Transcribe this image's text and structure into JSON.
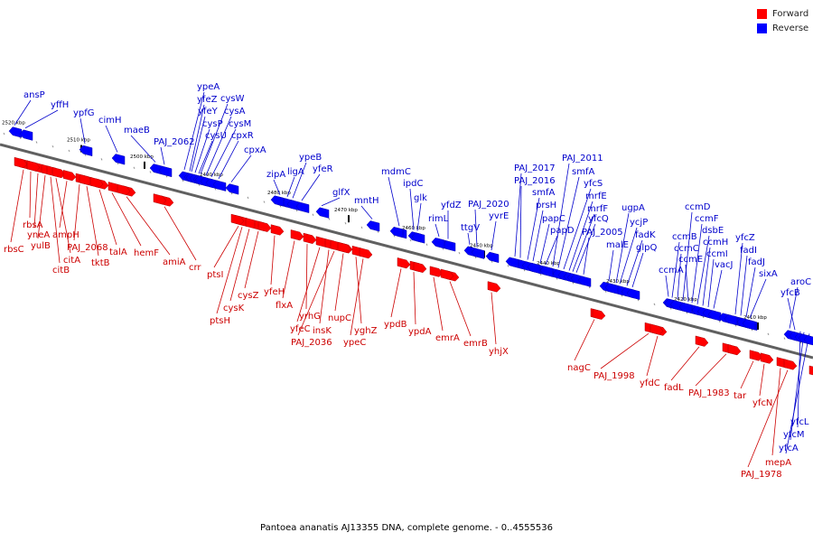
{
  "legend": {
    "forward_label": "Forward",
    "reverse_label": "Reverse",
    "forward_color": "#ff0000",
    "reverse_color": "#0000ff"
  },
  "colors": {
    "forward_label": "#cc0000",
    "reverse_label": "#0000cc",
    "backbone": "#606060",
    "tick_major": "#000000",
    "tick_minor": "#909090"
  },
  "footer": "Pantoea ananatis AJ13355 DNA, complete genome. - 0..4555536",
  "scale_labels": [
    "2520 kbp",
    "2510 kbp",
    "2500 kbp",
    "2490 kbp",
    "2480 kbp",
    "2470 kbp",
    "2460 kbp",
    "2450 kbp",
    "2440 kbp",
    "2430 kbp",
    "2420 kbp",
    "2410 kbp"
  ],
  "forward_genes": [
    "rbsC",
    "rbsA",
    "yneA",
    "yulB",
    "citB",
    "citA",
    "ampH",
    "PAJ_2068",
    "tktB",
    "talA",
    "hemF",
    "amiA",
    "crr",
    "ptsI",
    "ptsH",
    "cysK",
    "cysZ",
    "yfeH",
    "flxA",
    "yrhG",
    "yfeC",
    "insK",
    "PAJ_2036",
    "nupC",
    "yghZ",
    "ypeC",
    "ypdB",
    "ypdA",
    "emrA",
    "emrB",
    "yhjX",
    "nagC",
    "PAJ_1998",
    "yfdC",
    "fadL",
    "PAJ_1983",
    "tar",
    "yfcN",
    "mepA",
    "PAJ_1978"
  ],
  "reverse_genes": [
    "ansP",
    "yffH",
    "ypfG",
    "cimH",
    "maeB",
    "PAJ_2062",
    "ypeA",
    "yfeZ",
    "yfeY",
    "cysP",
    "cysU",
    "cysW",
    "cysA",
    "cysM",
    "cpxR",
    "cpxA",
    "zipA",
    "ligA",
    "ypeB",
    "yfeR",
    "glfX",
    "mntH",
    "mdmC",
    "ipdC",
    "glk",
    "rimL",
    "yfdZ",
    "ttgV",
    "PAJ_2020",
    "yvrE",
    "PAJ_2017",
    "PAJ_2016",
    "smfA",
    "prsH",
    "papC",
    "papD",
    "PAJ_2011",
    "smfA",
    "yfcS",
    "mrfE",
    "mrfF",
    "yfcQ",
    "PAJ_2005",
    "malE",
    "ugpA",
    "ycjP",
    "fadK",
    "glpQ",
    "ccmA",
    "ccmB",
    "ccmC",
    "ccmD",
    "ccmE",
    "ccmF",
    "dsbE",
    "ccmH",
    "ccmI",
    "vacJ",
    "yfcZ",
    "fadI",
    "fadJ",
    "sixA",
    "aroC",
    "yfcB",
    "yfcL",
    "yfcM",
    "yfcA"
  ]
}
